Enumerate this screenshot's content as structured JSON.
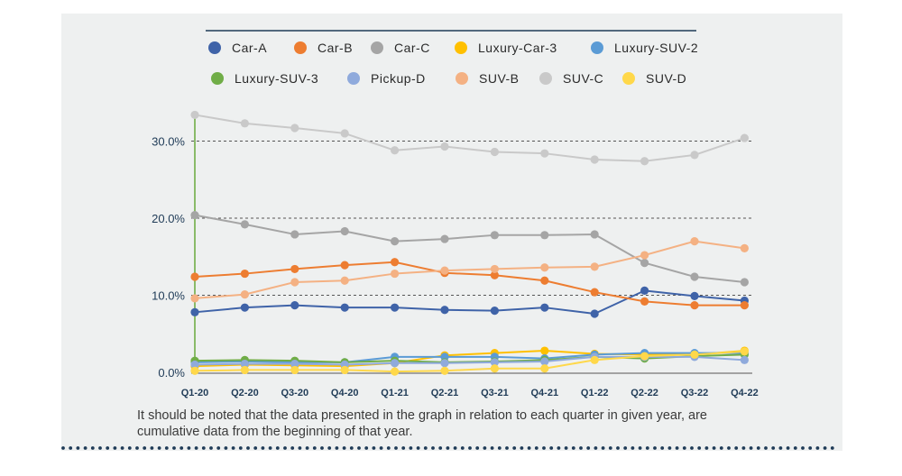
{
  "chart_data": {
    "type": "line",
    "categories": [
      "Q1-20",
      "Q2-20",
      "Q3-20",
      "Q4-20",
      "Q1-21",
      "Q2-21",
      "Q3-21",
      "Q4-21",
      "Q1-22",
      "Q2-22",
      "Q3-22",
      "Q4-22"
    ],
    "y_ticks": [
      "0.0%",
      "10.0%",
      "20.0%",
      "30.0%"
    ],
    "ylim": [
      0,
      34
    ],
    "grid": "horizontal dashed",
    "legend_position": "top",
    "series": [
      {
        "name": "Car-A",
        "color": "#3f63a8",
        "values": [
          7.8,
          8.4,
          8.7,
          8.4,
          8.4,
          8.1,
          8.0,
          8.4,
          7.6,
          10.6,
          9.9,
          9.3
        ]
      },
      {
        "name": "Car-B",
        "color": "#ed7d31",
        "values": [
          12.4,
          12.8,
          13.4,
          13.9,
          14.3,
          12.9,
          12.6,
          11.9,
          10.4,
          9.2,
          8.7,
          8.7
        ]
      },
      {
        "name": "Car-C",
        "color": "#a5a5a5",
        "values": [
          20.4,
          19.2,
          17.9,
          18.3,
          17.0,
          17.3,
          17.8,
          17.8,
          17.9,
          14.2,
          12.4,
          11.7
        ]
      },
      {
        "name": "Luxury-Car-3",
        "color": "#ffc000",
        "values": [
          0.8,
          1.0,
          0.9,
          0.8,
          1.2,
          2.2,
          2.5,
          2.8,
          2.4,
          2.3,
          2.3,
          2.8
        ]
      },
      {
        "name": "Luxury-SUV-2",
        "color": "#5b9bd5",
        "values": [
          1.3,
          1.4,
          1.3,
          1.3,
          2.0,
          2.0,
          2.0,
          1.8,
          2.3,
          2.5,
          2.5,
          2.5
        ]
      },
      {
        "name": "Luxury-SUV-3",
        "color": "#70ad47",
        "values": [
          1.5,
          1.6,
          1.5,
          1.3,
          1.5,
          1.3,
          1.4,
          1.6,
          2.0,
          1.8,
          2.1,
          2.3
        ]
      },
      {
        "name": "Pickup-D",
        "color": "#8faadc",
        "values": [
          1.0,
          1.1,
          1.1,
          1.0,
          1.2,
          1.2,
          1.3,
          1.4,
          2.0,
          2.0,
          2.0,
          1.6
        ]
      },
      {
        "name": "SUV-B",
        "color": "#f4b183",
        "values": [
          9.6,
          10.1,
          11.7,
          11.9,
          12.8,
          13.2,
          13.4,
          13.6,
          13.7,
          15.2,
          17.0,
          16.1
        ]
      },
      {
        "name": "SUV-C",
        "color": "#c9c9c9",
        "values": [
          33.4,
          32.3,
          31.7,
          31.0,
          28.8,
          29.3,
          28.6,
          28.4,
          27.6,
          27.4,
          28.2,
          30.4
        ]
      },
      {
        "name": "SUV-D",
        "color": "#ffd84a",
        "values": [
          0.2,
          0.3,
          0.3,
          0.3,
          0.1,
          0.2,
          0.5,
          0.5,
          1.6,
          2.1,
          2.3,
          2.7
        ]
      }
    ]
  },
  "note": "It should be noted that the data presented in the graph in relation to each quarter in given year, are cumulative data from the beginning of that year."
}
